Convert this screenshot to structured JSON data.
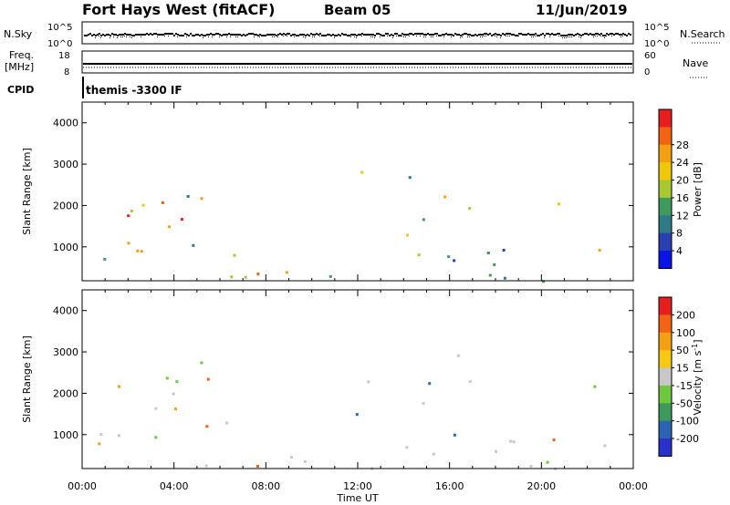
{
  "header": {
    "station": "Fort Hays West (fitACF)",
    "beam": "Beam 05",
    "date": "11/Jun/2019"
  },
  "status_panels": {
    "nsky_label": "N.Sky",
    "nsearch_label": "N.Search",
    "freq_label_1": "Freq.",
    "freq_label_2": "[MHz]",
    "nave_label": "Nave",
    "cpid_label": "CPID",
    "cpid_value": "themis -3300 IF",
    "nsky_ticks": [
      "10^5",
      "10^0"
    ],
    "nsearch_ticks": [
      "10^5",
      "10^0"
    ],
    "freq_ticks": [
      "18",
      "8"
    ],
    "nave_ticks": [
      "60",
      "0"
    ]
  },
  "chart_data": [
    {
      "type": "heatmap",
      "name": "power",
      "ylabel": "Slant Range [km]",
      "ylim": [
        180,
        4500
      ],
      "y_ticks": [
        1000,
        2000,
        3000,
        4000
      ],
      "x_tick_labels": [
        "00:00",
        "04:00",
        "08:00",
        "12:00",
        "16:00",
        "20:00",
        "00:00"
      ],
      "xlim_hours": [
        0,
        24
      ],
      "colorbar": {
        "label": "Power [dB]",
        "ticks": [
          "4",
          "8",
          "12",
          "16",
          "20",
          "24",
          "28"
        ],
        "colors": [
          "#0a14e6",
          "#2a3fb0",
          "#2e7a86",
          "#3f9a5e",
          "#a8c832",
          "#f0c80a",
          "#f5a014",
          "#f06414",
          "#e61e1e"
        ]
      }
    },
    {
      "type": "heatmap",
      "name": "velocity",
      "ylabel": "Slant Range [km]",
      "xlabel": "Time UT",
      "ylim": [
        180,
        4500
      ],
      "y_ticks": [
        1000,
        2000,
        3000,
        4000
      ],
      "x_tick_labels": [
        "00:00",
        "04:00",
        "08:00",
        "12:00",
        "16:00",
        "20:00",
        "00:00"
      ],
      "xlim_hours": [
        0,
        24
      ],
      "colorbar": {
        "label": "Velocity [m s^-1]",
        "ticks": [
          "200",
          "100",
          "50",
          "15",
          "-15",
          "-50",
          "-100",
          "-200"
        ],
        "colors": [
          "#2832c8",
          "#2c64b4",
          "#3c9a5a",
          "#6cc83c",
          "#c8c8c8",
          "#f5c814",
          "#f5a014",
          "#f06414",
          "#e61e1e"
        ]
      }
    }
  ]
}
